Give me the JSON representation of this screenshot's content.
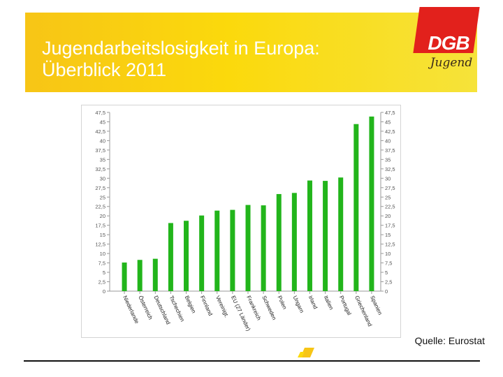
{
  "slide": {
    "title": "Jugendarbeitslosigkeit in Europa:\nÜberblick 2011",
    "source": "Quelle: Eurostat",
    "logo_text": "DGB",
    "logo_sub": "Jugend"
  },
  "colors": {
    "header_start": "#f7c516",
    "header_end": "#f6e33a",
    "bar": "#22b51b",
    "logo_red": "#e2211c"
  },
  "chart_data": {
    "type": "bar",
    "title": "",
    "xlabel": "",
    "ylabel": "",
    "ylim": [
      0,
      47.5
    ],
    "yticks": [
      0,
      2.5,
      5,
      7.5,
      10,
      12.5,
      15,
      17.5,
      20,
      22.5,
      25,
      27.5,
      30,
      32.5,
      35,
      37.5,
      40,
      42.5,
      45,
      47.5
    ],
    "ytick_labels": [
      "0",
      "2,5",
      "5",
      "7,5",
      "10",
      "12,5",
      "15",
      "17,5",
      "20",
      "22,5",
      "25",
      "27,5",
      "30",
      "32,5",
      "35",
      "37,5",
      "40",
      "42,5",
      "45",
      "47,5"
    ],
    "grid": false,
    "legend": "none",
    "categories": [
      "Niederlande",
      "Österreich",
      "Deutschland",
      "Tschechien",
      "Belgien",
      "Finnland",
      "Vereinigt.",
      "EU (27 Länder)",
      "Frankreich",
      "Schweden",
      "Polen",
      "Ungarn",
      "Irland",
      "Italien",
      "Portugal",
      "Griechenland",
      "Spanien"
    ],
    "values": [
      7.6,
      8.3,
      8.6,
      18.1,
      18.7,
      20.1,
      21.4,
      21.6,
      22.9,
      22.8,
      25.8,
      26.1,
      29.4,
      29.3,
      30.2,
      44.4,
      46.4
    ]
  }
}
